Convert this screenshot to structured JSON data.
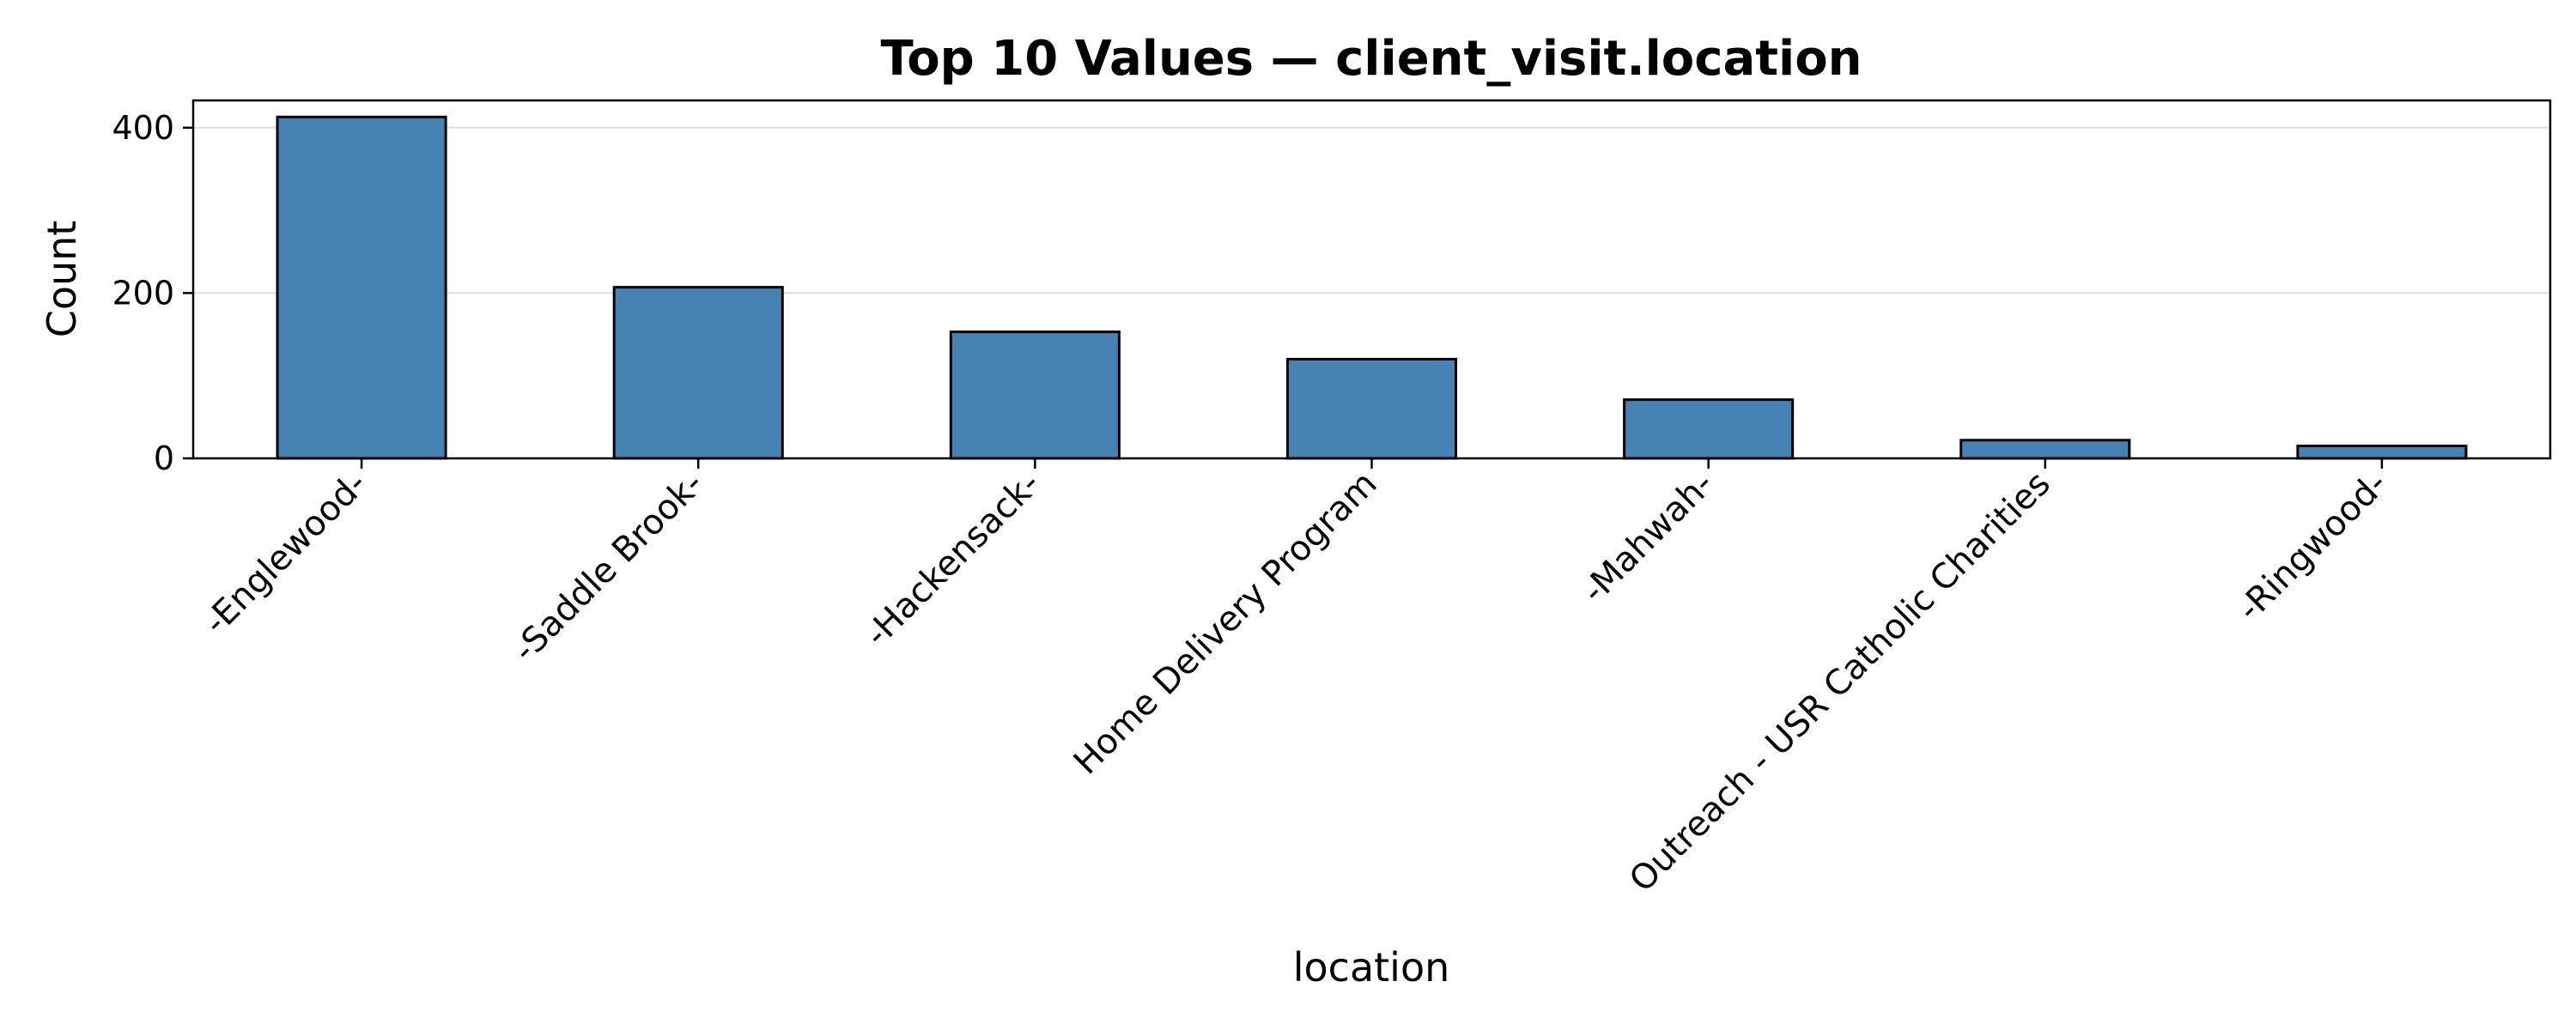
{
  "chart_data": {
    "type": "bar",
    "title": "Top 10 Values — client_visit.location",
    "xlabel": "location",
    "ylabel": "Count",
    "categories": [
      "-Englewood-",
      "-Saddle Brook-",
      "-Hackensack-",
      "Home Delivery Program",
      "-Mahwah-",
      "Outreach - USR Catholic Charities",
      "-Ringwood-"
    ],
    "values": [
      413,
      207,
      153,
      120,
      71,
      22,
      15
    ],
    "ylim": [
      0,
      433
    ],
    "yticks": [
      0,
      200,
      400
    ],
    "grid": "y",
    "bar_color": "#4682b4",
    "edge_color": "#000000",
    "grid_color": "#dddddd"
  }
}
